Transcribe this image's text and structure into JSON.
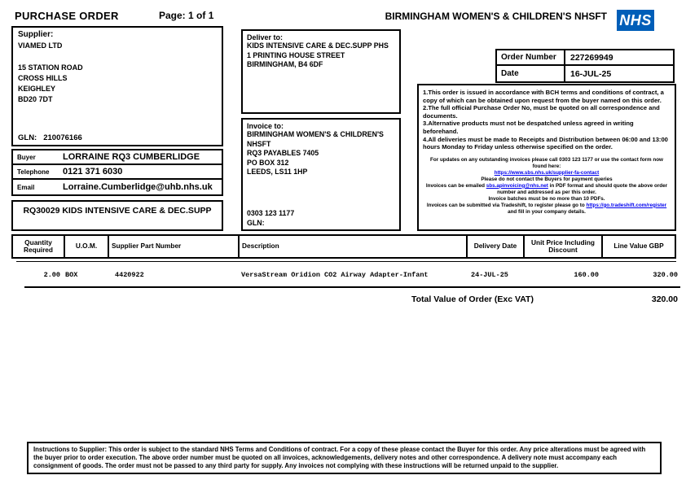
{
  "colors": {
    "nhs_blue": "#005EB8",
    "link_blue": "#0000EE"
  },
  "header": {
    "doc_title": "PURCHASE ORDER",
    "page_label": "Page:",
    "page_value": "1 of 1",
    "trust_name": "BIRMINGHAM WOMEN'S & CHILDREN'S NHSFT",
    "nhs_logo_text": "NHS"
  },
  "supplier": {
    "label": "Supplier:",
    "name": "VIAMED LTD",
    "address": [
      "15 STATION ROAD",
      "CROSS HILLS",
      "KEIGHLEY",
      "BD20 7DT"
    ],
    "gln_label": "GLN:",
    "gln": "210076166"
  },
  "buyer": {
    "rows": [
      {
        "label": "Buyer",
        "value": "LORRAINE RQ3 CUMBERLIDGE"
      },
      {
        "label": "Telephone",
        "value": "0121 371 6030"
      },
      {
        "label": "Email",
        "value": "Lorraine.Cumberlidge@uhb.nhs.uk"
      }
    ]
  },
  "requisition": {
    "text": "RQ30029 KIDS INTENSIVE CARE & DEC.SUPP"
  },
  "deliver_to": {
    "label": "Deliver to:",
    "lines": [
      "KIDS INTENSIVE CARE & DEC.SUPP PHS",
      "1 PRINTING HOUSE STREET",
      "BIRMINGHAM, B4 6DF"
    ]
  },
  "invoice_to": {
    "label": "Invoice to:",
    "lines": [
      "BIRMINGHAM WOMEN'S & CHILDREN'S",
      "NHSFT",
      "RQ3 PAYABLES 7405",
      "PO BOX 312",
      "LEEDS, LS11 1HP"
    ],
    "phone": "0303 123 1177",
    "gln_label": "GLN:"
  },
  "order_info": {
    "order_number_label": "Order Number",
    "order_number": "227269949",
    "date_label": "Date",
    "date": "16-JUL-25"
  },
  "terms": {
    "numbered": [
      "1.This order is issued in accordance with BCH terms and conditions of contract, a copy of which can be obtained upon request from the buyer named on this order.",
      "2.The full official Purchase Order No, must be quoted on all correspondence and documents.",
      "3.Alternative products must not be despatched unless agreed in writing beforehand.",
      "4.All deliveries must be made to Receipts and Distribution between 06:00 and 13:00 hours Monday to Friday unless otherwise specified on the order."
    ],
    "note_1": "For updates on any outstanding invoices please call 0303 123 1177 or use the contact form now found here:",
    "link_1": "https://www.sbs.nhs.uk/supplier-fa-contact",
    "note_2": "Please do not contact the Buyers for payment queries",
    "note_3a": "Invoices can be emailed ",
    "link_2": "sbs.apinvoicing@nhs.net",
    "note_3b": " in PDF format and should quote the above order number and addressed as per this order.",
    "note_4": "Invoice batches must be no more than 10 PDFs.",
    "note_5a": "Invoices can be submitted via Tradeshift, to register please go to ",
    "link_3": "https://go.tradeshift.com/register",
    "note_5b": " and fill in your company details."
  },
  "items_table": {
    "columns": [
      "Quantity Required",
      "U.O.M.",
      "Supplier Part Number",
      "Description",
      "Delivery Date",
      "Unit Price Including Discount",
      "Line Value GBP"
    ],
    "rows": [
      {
        "qty": "2.00",
        "uom": "BOX",
        "part_number": "4420922",
        "description": "VersaStream Oridion CO2 Airway Adapter-Infant",
        "delivery_date": "24-JUL-25",
        "unit_price": "160.00",
        "line_value": "320.00"
      }
    ],
    "total_label": "Total Value of Order (Exc VAT)",
    "total_value": "320.00"
  },
  "footer": {
    "instructions": "Instructions to Supplier: This order is subject to the standard NHS Terms and Conditions of contract. For a copy of these please contact the Buyer for this order. Any price alterations must be agreed with the buyer prior to order execution. The above order number must be quoted on all invoices, acknowledgements, delivery notes and other correspondence. A delivery note must accompany each consignment of goods. The order must not be passed to any third party for supply. Any invoices not complying with these instructions will be returned unpaid to the supplier."
  }
}
